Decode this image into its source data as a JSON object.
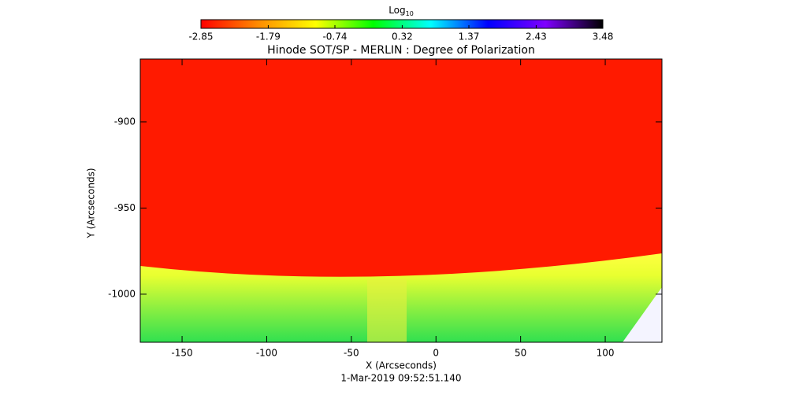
{
  "chart_data": {
    "type": "heatmap",
    "title": "Hinode SOT/SP - MERLIN : Degree of Polarization",
    "colorbar_label": "Log",
    "colorbar_label_subscript": "10",
    "clim": [
      -2.85,
      3.48
    ],
    "colorbar_ticks": [
      -2.85,
      -1.79,
      -0.74,
      0.32,
      1.37,
      2.43,
      3.48
    ],
    "colormap": [
      "#ff0000",
      "#ff8c00",
      "#ffff00",
      "#00ff00",
      "#00ffff",
      "#0000ff",
      "#7f00ff",
      "#000000"
    ],
    "x_label": "X (Arcseconds)",
    "y_label": "Y (Arcseconds)",
    "xlim": [
      -174.7,
      133.5
    ],
    "xticks": [
      -150,
      -100,
      -50,
      0,
      50,
      100
    ],
    "ylim": [
      -1027.9,
      -863.5
    ],
    "yticks": [
      -1000,
      -950,
      -900
    ],
    "footer": "1-Mar-2019 09:52:51.140"
  }
}
